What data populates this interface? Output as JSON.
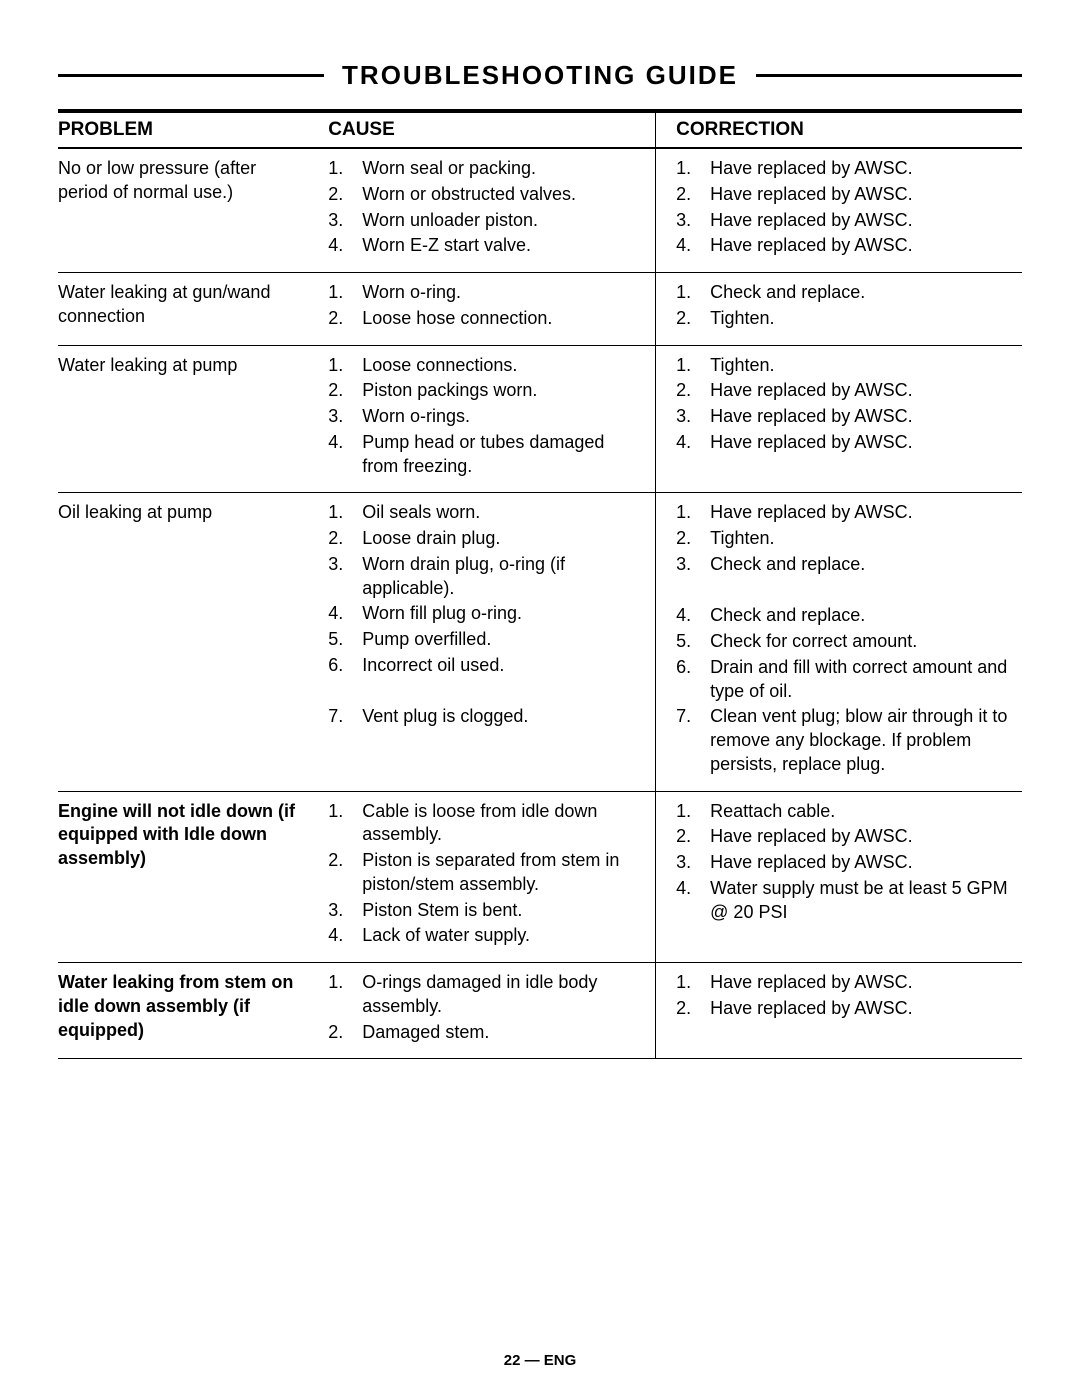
{
  "page_title": "TROUBLESHOOTING  GUIDE",
  "footer": "22 — ENG",
  "headers": {
    "problem": "PROBLEM",
    "cause": "CAUSE",
    "correction": "CORRECTION"
  },
  "rows": [
    {
      "problem": "No or low pressure (after period of normal use.)",
      "problem_bold": false,
      "causes": [
        "Worn seal or packing.",
        "Worn or obstructed valves.",
        "Worn unloader piston.",
        "Worn E-Z start valve."
      ],
      "corrections": [
        "Have replaced by AWSC.",
        "Have replaced by AWSC.",
        "Have replaced by AWSC.",
        "Have replaced by AWSC."
      ]
    },
    {
      "problem": "Water leaking at gun/wand connection",
      "problem_bold": false,
      "causes": [
        "Worn o-ring.",
        "Loose hose connection."
      ],
      "corrections": [
        "Check and replace.",
        "Tighten."
      ]
    },
    {
      "problem": "Water leaking at pump",
      "problem_bold": false,
      "causes": [
        "Loose connections.",
        "Piston packings worn.",
        "Worn o-rings.",
        "Pump head or tubes damaged from freezing."
      ],
      "corrections": [
        "Tighten.",
        "Have replaced by AWSC.",
        "Have replaced by AWSC.",
        "Have replaced by AWSC."
      ]
    },
    {
      "problem": "Oil leaking at pump",
      "problem_bold": false,
      "causes": [
        "Oil seals worn.",
        "Loose drain plug.",
        "Worn drain plug, o-ring (if applicable).",
        "Worn fill plug o-ring.",
        "Pump overfilled.",
        "Incorrect oil used.",
        "Vent plug is clogged."
      ],
      "corrections": [
        "Have replaced by AWSC.",
        "Tighten.",
        "Check and replace.",
        "Check and replace.",
        "Check for correct amount.",
        "Drain and fill with correct amount and type of oil.",
        "Clean vent plug; blow air through it to remove any blockage. If problem persists, replace plug."
      ]
    },
    {
      "problem": "Engine will not idle down (if equipped with Idle down assembly)",
      "problem_bold": true,
      "causes": [
        "Cable is loose from idle down assembly.",
        "Piston is separated from stem in piston/stem assembly.",
        "Piston Stem is bent.",
        "Lack of water supply."
      ],
      "corrections": [
        "Reattach cable.",
        "Have replaced by AWSC.",
        "Have replaced by AWSC.",
        "Water supply must be at least  5 GPM @ 20 PSI"
      ]
    },
    {
      "problem": "Water leaking from stem on idle down assembly (if equipped)",
      "problem_bold": true,
      "causes": [
        "O-rings damaged in idle body assembly.",
        "Damaged stem."
      ],
      "corrections": [
        "Have replaced by AWSC.",
        "Have replaced by AWSC."
      ]
    }
  ],
  "oil_row_correction_gaps": {
    "after_index": 2,
    "blank_lines": 1
  },
  "oil_row_cause_gaps": {
    "after_index": 5,
    "blank_lines": 1
  }
}
